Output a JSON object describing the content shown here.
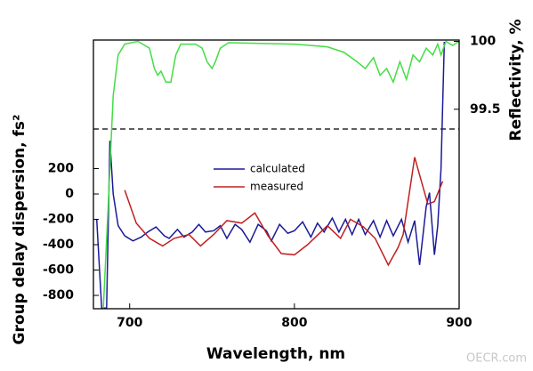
{
  "chart_data": {
    "type": "line",
    "x_label": "Wavelength, nm",
    "y_label": "Group delay dispersion, fs²",
    "y2_label": "Reflectivity, %",
    "watermark": "OECR.com",
    "xlim": [
      678,
      900
    ],
    "xticks": [
      700,
      800,
      900
    ],
    "ylim": [
      -905,
      1214
    ],
    "yticks": [
      -800,
      -600,
      -400,
      -200,
      0,
      200
    ],
    "y2lim": [
      98.03,
      100.01
    ],
    "y2ticks": [
      99.5,
      100
    ],
    "series": [
      {
        "name": "calculated",
        "color": "#1a1a9a",
        "x": [
          680,
          683,
          686,
          688,
          690,
          693,
          697,
          702,
          707,
          711,
          716,
          721,
          724,
          729,
          733,
          738,
          742,
          746,
          751,
          755,
          759,
          764,
          768,
          773,
          778,
          783,
          786,
          791,
          796,
          800,
          805,
          810,
          814,
          818,
          823,
          827,
          831,
          835,
          839,
          843,
          848,
          852,
          856,
          860,
          865,
          869,
          873,
          876,
          880,
          882,
          885,
          887,
          889,
          891
        ],
        "values": [
          -200,
          -900,
          -900,
          420,
          0,
          -250,
          -330,
          -370,
          -340,
          -300,
          -260,
          -330,
          -350,
          -280,
          -340,
          -300,
          -240,
          -300,
          -290,
          -250,
          -350,
          -240,
          -280,
          -380,
          -240,
          -290,
          -370,
          -240,
          -310,
          -290,
          -220,
          -340,
          -230,
          -300,
          -190,
          -300,
          -200,
          -320,
          -200,
          -320,
          -210,
          -340,
          -210,
          -330,
          -200,
          -380,
          -210,
          -560,
          -100,
          10,
          -480,
          -250,
          200,
          1200
        ]
      },
      {
        "name": "measured",
        "color": "#c02020",
        "x": [
          697,
          704,
          712,
          720,
          727,
          736,
          743,
          751,
          759,
          768,
          776,
          784,
          792,
          800,
          808,
          820,
          828,
          834,
          842,
          849,
          857,
          863,
          866,
          873,
          876,
          881,
          885,
          890
        ],
        "values": [
          30,
          -230,
          -350,
          -410,
          -350,
          -320,
          -410,
          -320,
          -210,
          -230,
          -150,
          -330,
          -470,
          -480,
          -400,
          -250,
          -350,
          -200,
          -260,
          -350,
          -560,
          -420,
          -320,
          290,
          150,
          -80,
          -60,
          100
        ]
      },
      {
        "name": "reflectivity",
        "color": "#44dd44",
        "axis": "y2",
        "x": [
          684,
          687,
          690,
          693,
          697,
          705,
          712,
          715,
          717,
          719,
          722,
          725,
          728,
          731,
          740,
          744,
          747,
          750,
          752,
          755,
          760,
          800,
          820,
          830,
          838,
          843,
          848,
          852,
          856,
          860,
          864,
          868,
          872,
          876,
          880,
          884,
          887,
          889,
          892,
          896,
          900
        ],
        "values": [
          98.03,
          98.8,
          99.6,
          99.9,
          99.98,
          100.0,
          99.95,
          99.8,
          99.75,
          99.78,
          99.7,
          99.7,
          99.9,
          99.98,
          99.98,
          99.95,
          99.85,
          99.8,
          99.85,
          99.95,
          99.99,
          99.98,
          99.96,
          99.92,
          99.85,
          99.8,
          99.88,
          99.75,
          99.8,
          99.7,
          99.85,
          99.72,
          99.9,
          99.85,
          99.95,
          99.9,
          99.98,
          99.9,
          100.0,
          99.97,
          100.0
        ]
      }
    ]
  }
}
